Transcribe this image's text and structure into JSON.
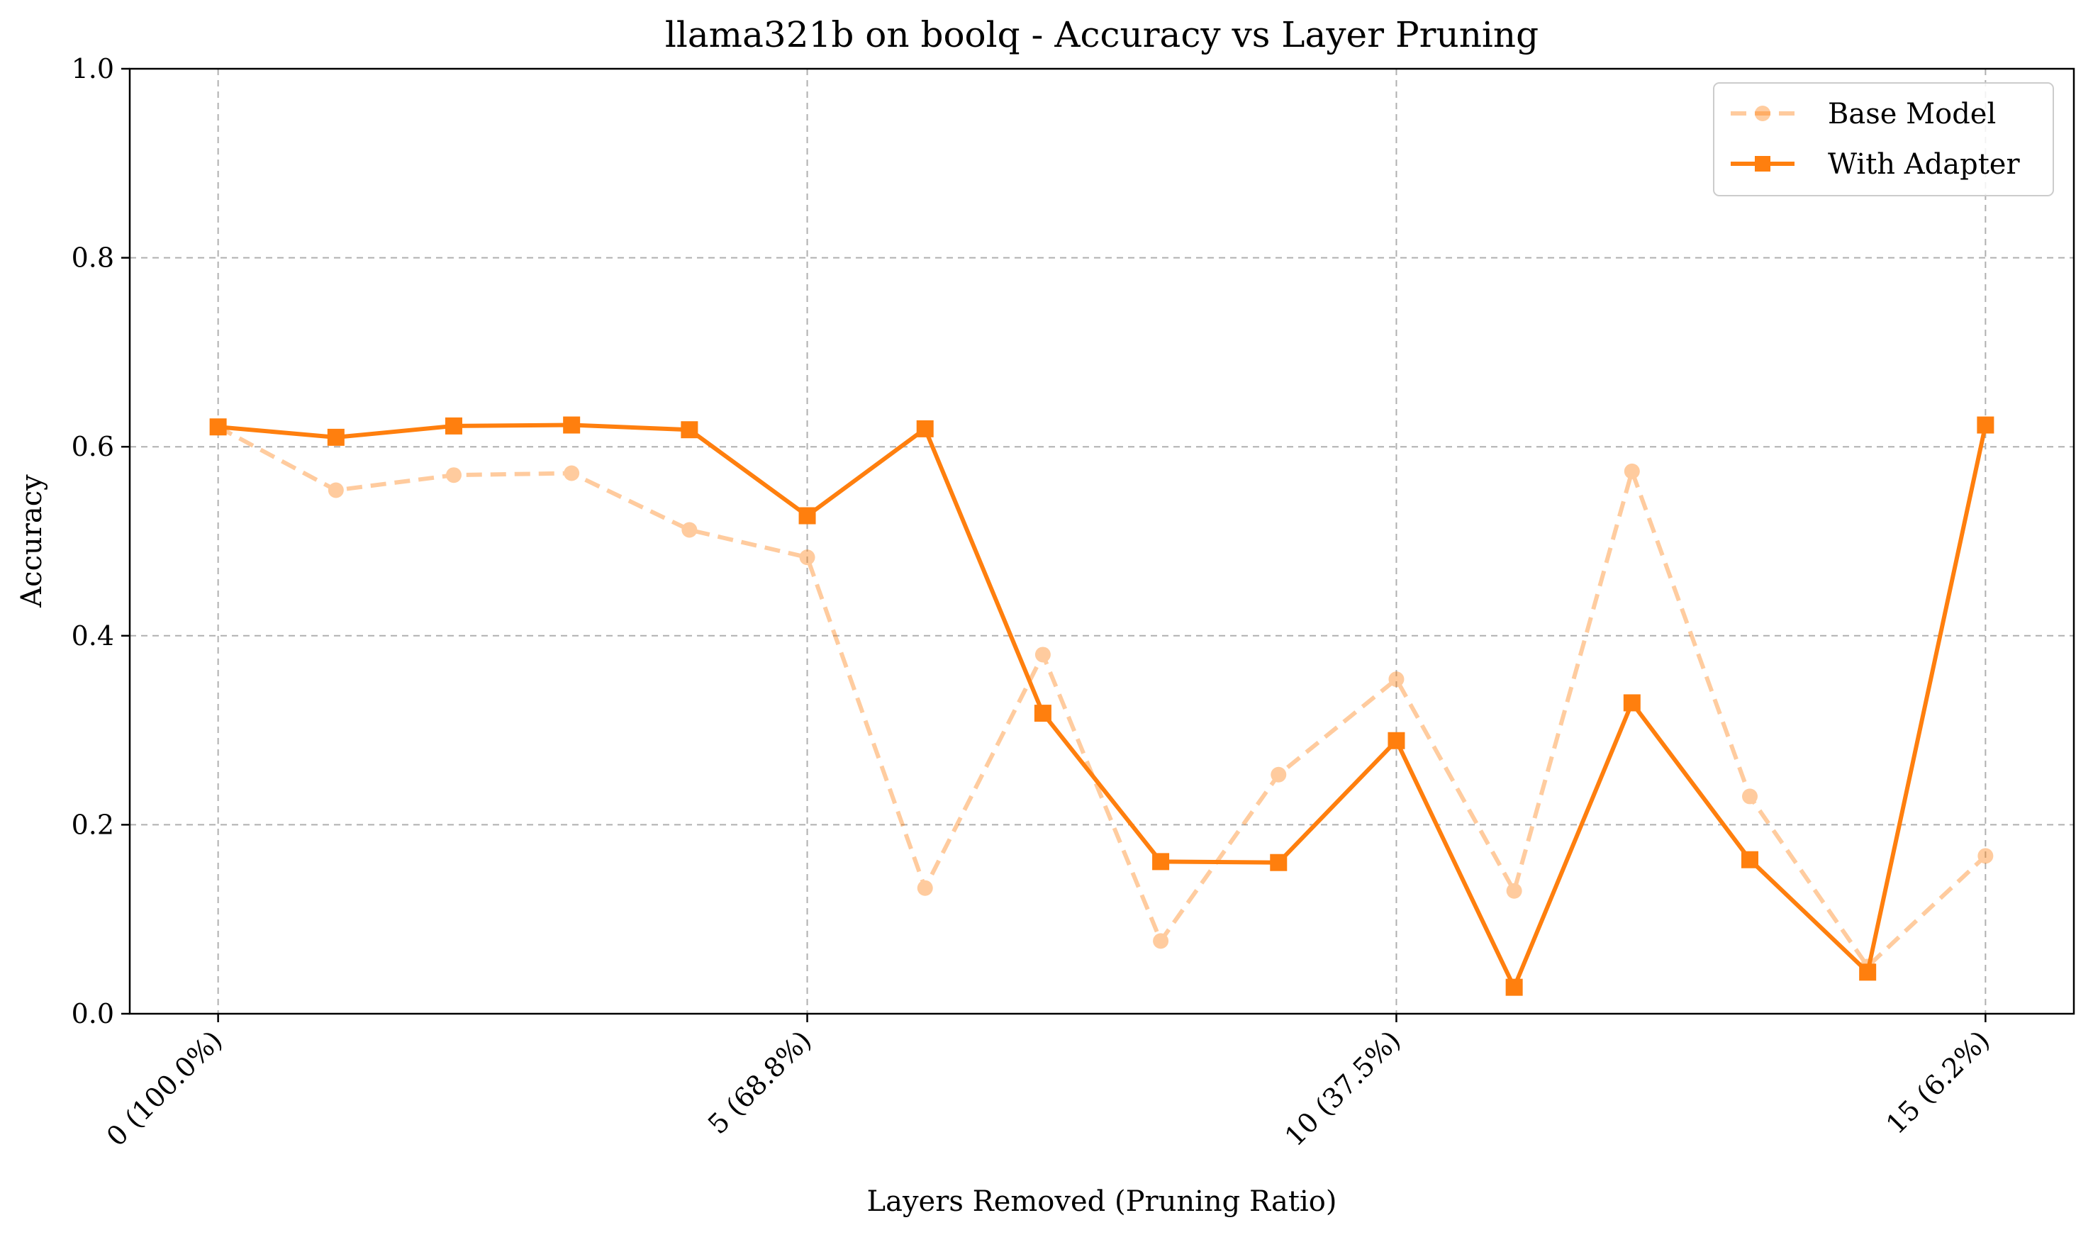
{
  "chart_data": {
    "type": "line",
    "title": "llama321b on boolq - Accuracy vs Layer Pruning",
    "xlabel": "Layers Removed (Pruning Ratio)",
    "ylabel": "Accuracy",
    "x": [
      0,
      1,
      2,
      3,
      4,
      5,
      6,
      7,
      8,
      9,
      10,
      11,
      12,
      13,
      14,
      15
    ],
    "xlim": [
      -0.75,
      15.75
    ],
    "ylim": [
      0,
      1
    ],
    "xticks": [
      {
        "value": 0,
        "label": "0 (100.0%)"
      },
      {
        "value": 5,
        "label": "5 (68.8%)"
      },
      {
        "value": 10,
        "label": "10 (37.5%)"
      },
      {
        "value": 15,
        "label": "15 (6.2%)"
      }
    ],
    "yticks": [
      {
        "value": 0.0,
        "label": "0.0"
      },
      {
        "value": 0.2,
        "label": "0.2"
      },
      {
        "value": 0.4,
        "label": "0.4"
      },
      {
        "value": 0.6,
        "label": "0.6"
      },
      {
        "value": 0.8,
        "label": "0.8"
      },
      {
        "value": 1.0,
        "label": "1.0"
      }
    ],
    "grid": true,
    "legend_position": "top-right",
    "series": [
      {
        "name": "Base Model",
        "color": "#ff7f0e",
        "line_style": "dashed",
        "marker": "circle",
        "opacity": 0.4,
        "values": [
          0.621,
          0.554,
          0.57,
          0.572,
          0.512,
          0.483,
          0.133,
          0.38,
          0.077,
          0.253,
          0.354,
          0.13,
          0.574,
          0.23,
          0.05,
          0.167
        ]
      },
      {
        "name": "With Adapter",
        "color": "#ff7f0e",
        "line_style": "solid",
        "marker": "square",
        "opacity": 1.0,
        "values": [
          0.621,
          0.61,
          0.622,
          0.623,
          0.618,
          0.527,
          0.619,
          0.318,
          0.161,
          0.16,
          0.289,
          0.028,
          0.329,
          0.163,
          0.044,
          0.623
        ]
      }
    ]
  }
}
